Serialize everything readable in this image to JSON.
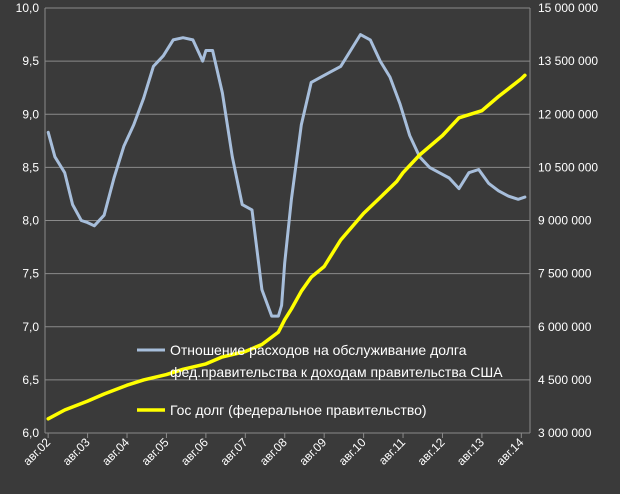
{
  "chart_data": {
    "type": "line",
    "x_tick_labels": [
      "авг.02",
      "авг.03",
      "авг.04",
      "авг.05",
      "авг.06",
      "авг.07",
      "авг.08",
      "авг.09",
      "авг.10",
      "авг.11",
      "авг.12",
      "авг.13",
      "авг.14"
    ],
    "left_axis": {
      "ylim": [
        6.0,
        10.0
      ],
      "tick_labels": [
        "6,0",
        "6,5",
        "7,0",
        "7,5",
        "8,0",
        "8,5",
        "9,0",
        "9,5",
        "10,0"
      ],
      "tick_values": [
        6.0,
        6.5,
        7.0,
        7.5,
        8.0,
        8.5,
        9.0,
        9.5,
        10.0
      ]
    },
    "right_axis": {
      "ylim": [
        3000000,
        15000000
      ],
      "tick_labels": [
        "3 000 000",
        "4 500 000",
        "6 000 000",
        "7 500 000",
        "9 000 000",
        "10 500 000",
        "12 000 000",
        "13 500 000",
        "15 000 000"
      ],
      "tick_values": [
        3000000,
        4500000,
        6000000,
        7500000,
        9000000,
        10500000,
        12000000,
        13500000,
        15000000
      ]
    },
    "grid": true,
    "legend_position": "bottom-center",
    "series": [
      {
        "name": "Отношение расходов на обслуживание долга фед.правительства к доходам правительства США",
        "color": "#a7bedb",
        "axis": "left",
        "x": [
          2002.58,
          2002.75,
          2003.0,
          2003.2,
          2003.42,
          2003.58,
          2003.75,
          2004.0,
          2004.25,
          2004.5,
          2004.75,
          2005.0,
          2005.25,
          2005.5,
          2005.75,
          2006.0,
          2006.25,
          2006.5,
          2006.58,
          2006.75,
          2007.0,
          2007.25,
          2007.5,
          2007.75,
          2008.0,
          2008.25,
          2008.42,
          2008.5,
          2008.58,
          2008.75,
          2009.0,
          2009.25,
          2009.5,
          2009.75,
          2010.0,
          2010.25,
          2010.5,
          2010.75,
          2011.0,
          2011.25,
          2011.5,
          2011.75,
          2012.0,
          2012.25,
          2012.5,
          2012.75,
          2013.0,
          2013.25,
          2013.5,
          2013.75,
          2014.0,
          2014.25,
          2014.5,
          2014.67
        ],
        "values": [
          8.83,
          8.6,
          8.45,
          8.15,
          8.0,
          7.98,
          7.95,
          8.05,
          8.4,
          8.7,
          8.9,
          9.15,
          9.45,
          9.55,
          9.7,
          9.72,
          9.7,
          9.5,
          9.6,
          9.6,
          9.2,
          8.6,
          8.15,
          8.1,
          7.35,
          7.1,
          7.1,
          7.2,
          7.6,
          8.2,
          8.9,
          9.3,
          9.35,
          9.4,
          9.45,
          9.6,
          9.75,
          9.7,
          9.5,
          9.35,
          9.1,
          8.8,
          8.6,
          8.5,
          8.45,
          8.4,
          8.3,
          8.45,
          8.48,
          8.35,
          8.28,
          8.23,
          8.2,
          8.22
        ]
      },
      {
        "name": "Гос долг (федеральное правительство)",
        "color": "#ffff00",
        "axis": "right",
        "x": [
          2002.58,
          2003.0,
          2003.58,
          2004.0,
          2004.58,
          2005.0,
          2005.58,
          2006.0,
          2006.58,
          2007.0,
          2007.58,
          2008.0,
          2008.42,
          2008.58,
          2008.75,
          2009.0,
          2009.25,
          2009.58,
          2010.0,
          2010.58,
          2011.0,
          2011.42,
          2011.58,
          2012.0,
          2012.58,
          2013.0,
          2013.58,
          2014.0,
          2014.58,
          2014.67
        ],
        "values": [
          3400000,
          3650000,
          3900000,
          4100000,
          4350000,
          4500000,
          4650000,
          4800000,
          4950000,
          5150000,
          5300000,
          5500000,
          5850000,
          6200000,
          6500000,
          7000000,
          7400000,
          7700000,
          8450000,
          9200000,
          9650000,
          10100000,
          10350000,
          10850000,
          11400000,
          11900000,
          12100000,
          12500000,
          13000000,
          13100000
        ]
      }
    ]
  }
}
